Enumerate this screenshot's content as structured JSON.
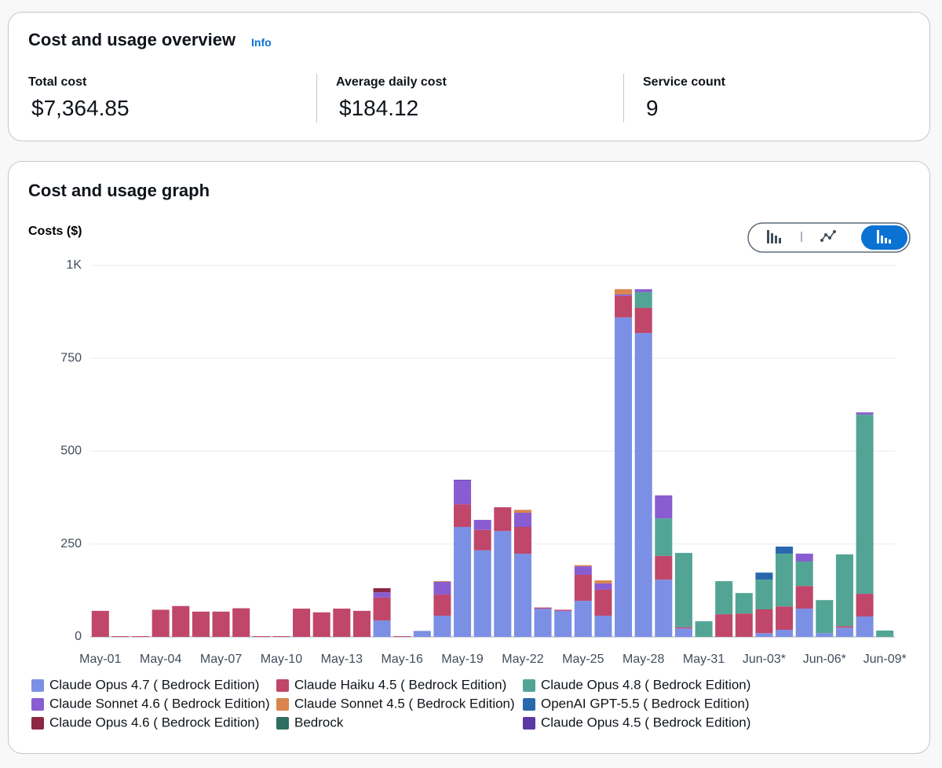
{
  "overview": {
    "title": "Cost and usage overview",
    "info": "Info",
    "metrics": [
      {
        "label": "Total cost",
        "value": "$7,364.85"
      },
      {
        "label": "Average daily cost",
        "value": "$184.12"
      },
      {
        "label": "Service count",
        "value": "9"
      }
    ]
  },
  "graph": {
    "title": "Cost and usage graph"
  },
  "chart_data": {
    "type": "bar",
    "stacked": true,
    "y_label": "Costs ($)",
    "categories": [
      "May-01",
      null,
      null,
      "May-04",
      null,
      null,
      "May-07",
      null,
      null,
      "May-10",
      null,
      null,
      "May-13",
      null,
      null,
      "May-16",
      null,
      null,
      "May-19",
      null,
      null,
      "May-22",
      null,
      null,
      "May-25",
      null,
      null,
      "May-28",
      null,
      null,
      "May-31",
      null,
      null,
      "Jun-03*",
      null,
      null,
      "Jun-06*",
      null,
      null,
      "Jun-09*"
    ],
    "series": [
      {
        "name": "Claude Opus 4.7 ( Bedrock Edition)",
        "color": "#7b8fe4",
        "values": [
          0,
          0,
          0,
          0,
          0,
          0,
          0,
          0,
          0,
          0,
          0,
          0,
          0,
          0,
          44,
          0,
          16,
          57,
          296,
          233,
          285,
          224,
          76,
          70,
          97,
          57,
          860,
          818,
          154,
          23,
          0,
          0,
          0,
          10,
          19,
          76,
          10,
          25,
          55,
          0
        ]
      },
      {
        "name": "Claude Haiku 4.5 ( Bedrock Edition)",
        "color": "#c0466a",
        "values": [
          70,
          2,
          2,
          73,
          83,
          68,
          68,
          77,
          2,
          2,
          76,
          66,
          76,
          70,
          62,
          2,
          0,
          57,
          61,
          55,
          64,
          72,
          3,
          3,
          70,
          70,
          58,
          68,
          64,
          3,
          0,
          61,
          63,
          64,
          63,
          61,
          0,
          4,
          61,
          0
        ]
      },
      {
        "name": "Claude Opus 4.8 ( Bedrock Edition)",
        "color": "#52a594",
        "values": [
          0,
          0,
          0,
          0,
          0,
          0,
          0,
          0,
          0,
          0,
          0,
          0,
          0,
          0,
          0,
          0,
          0,
          0,
          0,
          0,
          0,
          0,
          0,
          0,
          0,
          0,
          0,
          42,
          101,
          200,
          42,
          89,
          55,
          80,
          142,
          66,
          89,
          193,
          482,
          17
        ]
      },
      {
        "name": "Claude Sonnet 4.6 ( Bedrock Edition)",
        "color": "#8a5cd1",
        "values": [
          0,
          0,
          0,
          0,
          0,
          0,
          0,
          0,
          0,
          0,
          0,
          0,
          0,
          0,
          14,
          0,
          0,
          34,
          64,
          27,
          0,
          38,
          0,
          0,
          23,
          17,
          4,
          8,
          62,
          0,
          0,
          0,
          0,
          0,
          0,
          21,
          0,
          0,
          4,
          0
        ]
      },
      {
        "name": "Claude Sonnet 4.5 ( Bedrock Edition)",
        "color": "#d9854d",
        "values": [
          0,
          0,
          0,
          0,
          0,
          0,
          0,
          0,
          0,
          0,
          0,
          0,
          0,
          0,
          0,
          0,
          0,
          2,
          0,
          0,
          0,
          8,
          0,
          0,
          3,
          8,
          14,
          0,
          0,
          0,
          0,
          0,
          0,
          0,
          0,
          0,
          0,
          0,
          0,
          0
        ]
      },
      {
        "name": "OpenAI GPT-5.5 ( Bedrock Edition)",
        "color": "#2a68ad",
        "values": [
          0,
          0,
          0,
          0,
          0,
          0,
          0,
          0,
          0,
          0,
          0,
          0,
          0,
          0,
          0,
          0,
          0,
          0,
          0,
          0,
          0,
          0,
          0,
          0,
          0,
          0,
          0,
          0,
          0,
          0,
          0,
          0,
          0,
          19,
          19,
          0,
          0,
          0,
          0,
          0
        ]
      },
      {
        "name": "Claude Opus 4.6 ( Bedrock Edition)",
        "color": "#8c2843",
        "values": [
          0,
          0,
          0,
          0,
          0,
          0,
          0,
          0,
          0,
          0,
          0,
          0,
          0,
          0,
          11,
          0,
          0,
          0,
          0,
          0,
          0,
          0,
          0,
          0,
          0,
          0,
          0,
          0,
          0,
          0,
          0,
          0,
          0,
          0,
          0,
          0,
          0,
          0,
          0,
          0
        ]
      },
      {
        "name": "Bedrock",
        "color": "#2f6e60",
        "values": [
          0,
          0,
          0,
          0,
          0,
          0,
          0,
          0,
          0,
          0,
          0,
          0,
          0,
          0,
          0,
          0,
          0,
          0,
          0,
          0,
          0,
          0,
          0,
          0,
          0,
          0,
          0,
          0,
          0,
          0,
          0,
          0,
          0,
          0,
          0,
          0,
          0,
          0,
          0,
          0
        ]
      },
      {
        "name": "Claude Opus 4.5 ( Bedrock Edition)",
        "color": "#5b38a2",
        "values": [
          0,
          0,
          0,
          0,
          0,
          0,
          0,
          0,
          0,
          0,
          0,
          0,
          0,
          0,
          0,
          0,
          0,
          0,
          2,
          0,
          0,
          0,
          0,
          0,
          0,
          0,
          0,
          0,
          0,
          0,
          0,
          0,
          0,
          0,
          0,
          0,
          0,
          0,
          2,
          0
        ]
      }
    ],
    "ylim": [
      0,
      1000
    ],
    "yticks": [
      0,
      250,
      500,
      750,
      {
        "value": 1000,
        "label": "1K"
      }
    ],
    "grid": true
  }
}
